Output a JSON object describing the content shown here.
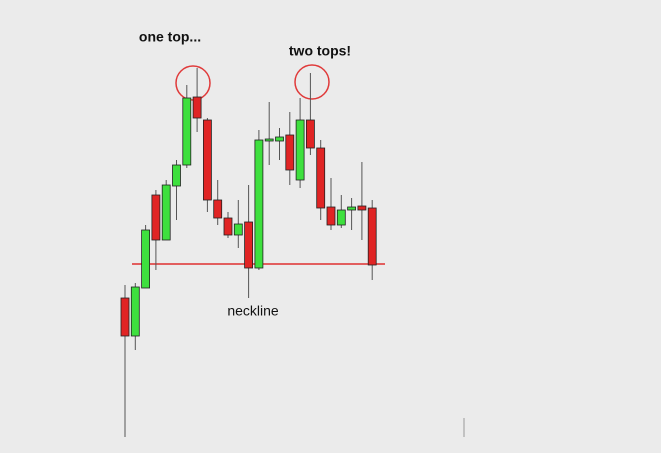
{
  "chart_data": {
    "type": "candlestick",
    "annotations": [
      "one top...",
      "two tops!"
    ],
    "neckline": {
      "label": "neckline",
      "value": 189,
      "color": "#e03030"
    },
    "categories": [
      null,
      null,
      null,
      null,
      null,
      null,
      null,
      null,
      null,
      null,
      null,
      null,
      null,
      null,
      null,
      null,
      null,
      null,
      null,
      null,
      null,
      null,
      null,
      null,
      null
    ],
    "open": [
      155,
      117,
      165,
      258,
      213,
      267,
      288,
      356,
      333,
      253,
      235,
      218,
      231,
      185,
      312,
      312,
      318,
      273,
      333,
      305,
      246,
      228,
      243,
      247,
      245
    ],
    "high": [
      168,
      170,
      228,
      263,
      273,
      293,
      368,
      385,
      335,
      273,
      241,
      253,
      268,
      323,
      351,
      325,
      341,
      355,
      380,
      313,
      275,
      258,
      255,
      291,
      253
    ],
    "low": [
      16,
      103,
      165,
      183,
      213,
      233,
      285,
      321,
      241,
      228,
      215,
      205,
      155,
      183,
      288,
      293,
      268,
      265,
      298,
      233,
      223,
      225,
      223,
      213,
      173
    ],
    "close": [
      117,
      166,
      223,
      213,
      268,
      288,
      355,
      335,
      253,
      235,
      218,
      229,
      185,
      313,
      314,
      316,
      283,
      333,
      305,
      245,
      228,
      243,
      246,
      243,
      188
    ],
    "up_color": "#3ee03e",
    "down_color": "#e02424",
    "ylim": [
      0,
      453
    ]
  }
}
